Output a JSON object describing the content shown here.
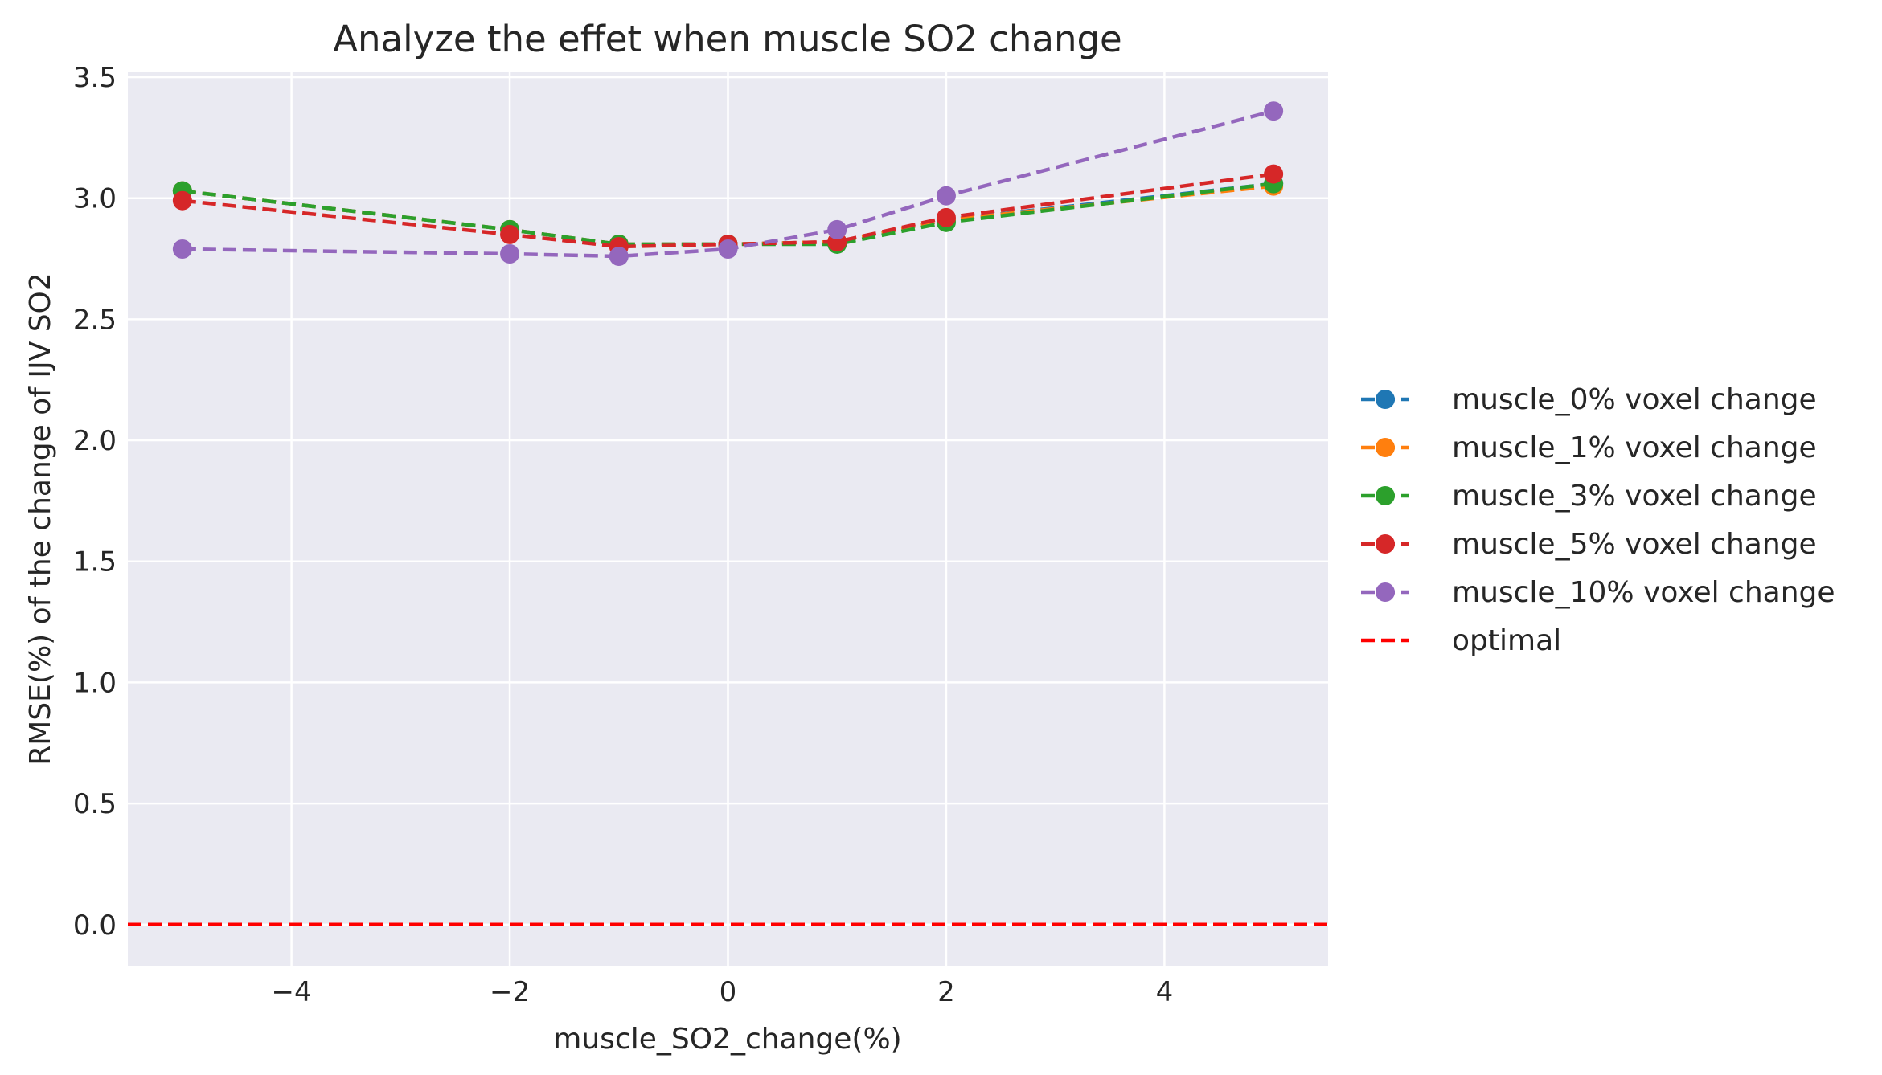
{
  "chart_data": {
    "type": "line",
    "title": "Analyze the effet when muscle SO2 change",
    "xlabel": "muscle_SO2_change(%)",
    "ylabel": "RMSE(%) of the change of IJV SO2",
    "xlim": [
      -5.5,
      5.5
    ],
    "ylim": [
      -0.17,
      3.52
    ],
    "xticks": [
      -4,
      -2,
      0,
      2,
      4
    ],
    "xtick_labels": [
      "−4",
      "−2",
      "0",
      "2",
      "4"
    ],
    "yticks": [
      0.0,
      0.5,
      1.0,
      1.5,
      2.0,
      2.5,
      3.0,
      3.5
    ],
    "ytick_labels": [
      "0.0",
      "0.5",
      "1.0",
      "1.5",
      "2.0",
      "2.5",
      "3.0",
      "3.5"
    ],
    "grid": true,
    "legend_position": "right",
    "x": [
      -5,
      -2,
      -1,
      0,
      1,
      2,
      5
    ],
    "series": [
      {
        "name": "muscle_0% voxel change",
        "color": "#1f77b4",
        "values": [
          3.03,
          2.87,
          2.81,
          2.81,
          2.82,
          2.91,
          3.06
        ]
      },
      {
        "name": "muscle_1% voxel change",
        "color": "#ff7f0e",
        "values": [
          3.03,
          2.87,
          2.81,
          2.81,
          2.82,
          2.91,
          3.05
        ]
      },
      {
        "name": "muscle_3% voxel change",
        "color": "#2ca02c",
        "values": [
          3.03,
          2.87,
          2.81,
          2.81,
          2.81,
          2.9,
          3.06
        ]
      },
      {
        "name": "muscle_5% voxel change",
        "color": "#d62728",
        "values": [
          2.99,
          2.85,
          2.8,
          2.81,
          2.82,
          2.92,
          3.1
        ]
      },
      {
        "name": "muscle_10% voxel change",
        "color": "#9467bd",
        "values": [
          2.79,
          2.77,
          2.76,
          2.79,
          2.87,
          3.01,
          3.36
        ]
      }
    ],
    "reference_line": {
      "name": "optimal",
      "color": "#ff0000",
      "y": 0.0,
      "style": "dashed"
    }
  }
}
